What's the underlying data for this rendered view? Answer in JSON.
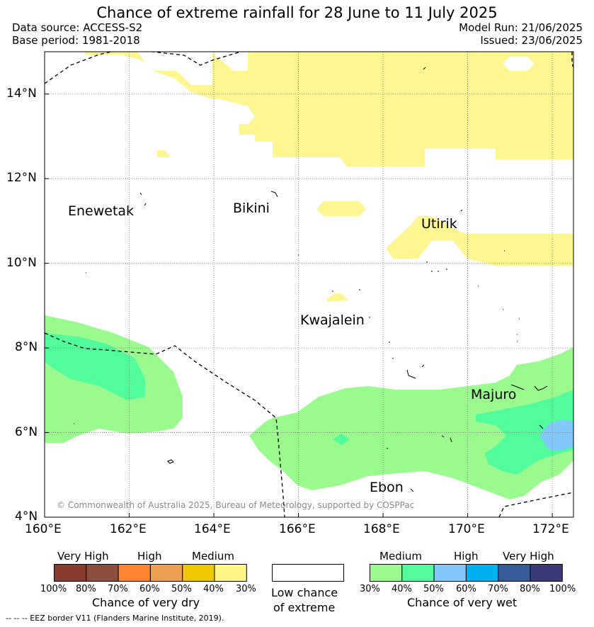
{
  "title": "Chance of extreme rainfall for 28 June to 11 July 2025",
  "header": {
    "data_source": "Data source: ACCESS-S2",
    "base_period": "Base period: 1981-2018",
    "model_run": "Model Run: 21/06/2025",
    "issued": "Issued: 23/06/2025"
  },
  "axes": {
    "x_ticks": [
      "160°E",
      "162°E",
      "164°E",
      "166°E",
      "168°E",
      "170°E",
      "172°E"
    ],
    "y_ticks": [
      "14°N",
      "12°N",
      "10°N",
      "8°N",
      "6°N",
      "4°N"
    ],
    "lon_range": [
      160,
      172.5
    ],
    "lat_range": [
      4,
      15
    ],
    "grid": true
  },
  "places": [
    {
      "name": "Enewetak",
      "lon": 160.55,
      "lat": 11.2
    },
    {
      "name": "Bikini",
      "lon": 164.45,
      "lat": 11.3
    },
    {
      "name": "Utirik",
      "lon": 168.95,
      "lat": 10.9
    },
    {
      "name": "Kwajalein",
      "lon": 166.0,
      "lat": 8.65
    },
    {
      "name": "Majuro",
      "lon": 170.0,
      "lat": 6.9
    },
    {
      "name": "Ebon",
      "lon": 167.9,
      "lat": 4.65
    }
  ],
  "copyright": "© Commonwealth of Australia 2025, Bureau of Meteorology, supported by COSPPac",
  "legend": {
    "dry": {
      "title": "Chance of very dry",
      "groups": [
        "Very High",
        "High",
        "Medium"
      ],
      "ticks": [
        "100%",
        "80%",
        "70%",
        "60%",
        "50%",
        "40%",
        "30%"
      ],
      "colors": [
        "#8B3A2E",
        "#8C4F3C",
        "#FF8330",
        "#ECA050",
        "#EFC801",
        "#FFF68A"
      ]
    },
    "neutral": {
      "line1": "Low chance",
      "line2": "of extreme",
      "color": "#FFFFFF"
    },
    "wet": {
      "title": "Chance of very wet",
      "groups": [
        "Medium",
        "High",
        "Very High"
      ],
      "ticks": [
        "30%",
        "40%",
        "50%",
        "60%",
        "70%",
        "80%",
        "100%"
      ],
      "colors": [
        "#9BFA8E",
        "#52FC9C",
        "#82C8FA",
        "#00B0F0",
        "#355C99",
        "#3C3A78"
      ]
    }
  },
  "footer": "-- -- -- EEZ border V11 (Flanders Marine Institute, 2019).",
  "colors": {
    "dry_medium": "#FDF691",
    "wet_medium": "#9BFA8E",
    "wet_40": "#52FC9C",
    "wet_50": "#82C8FA"
  }
}
